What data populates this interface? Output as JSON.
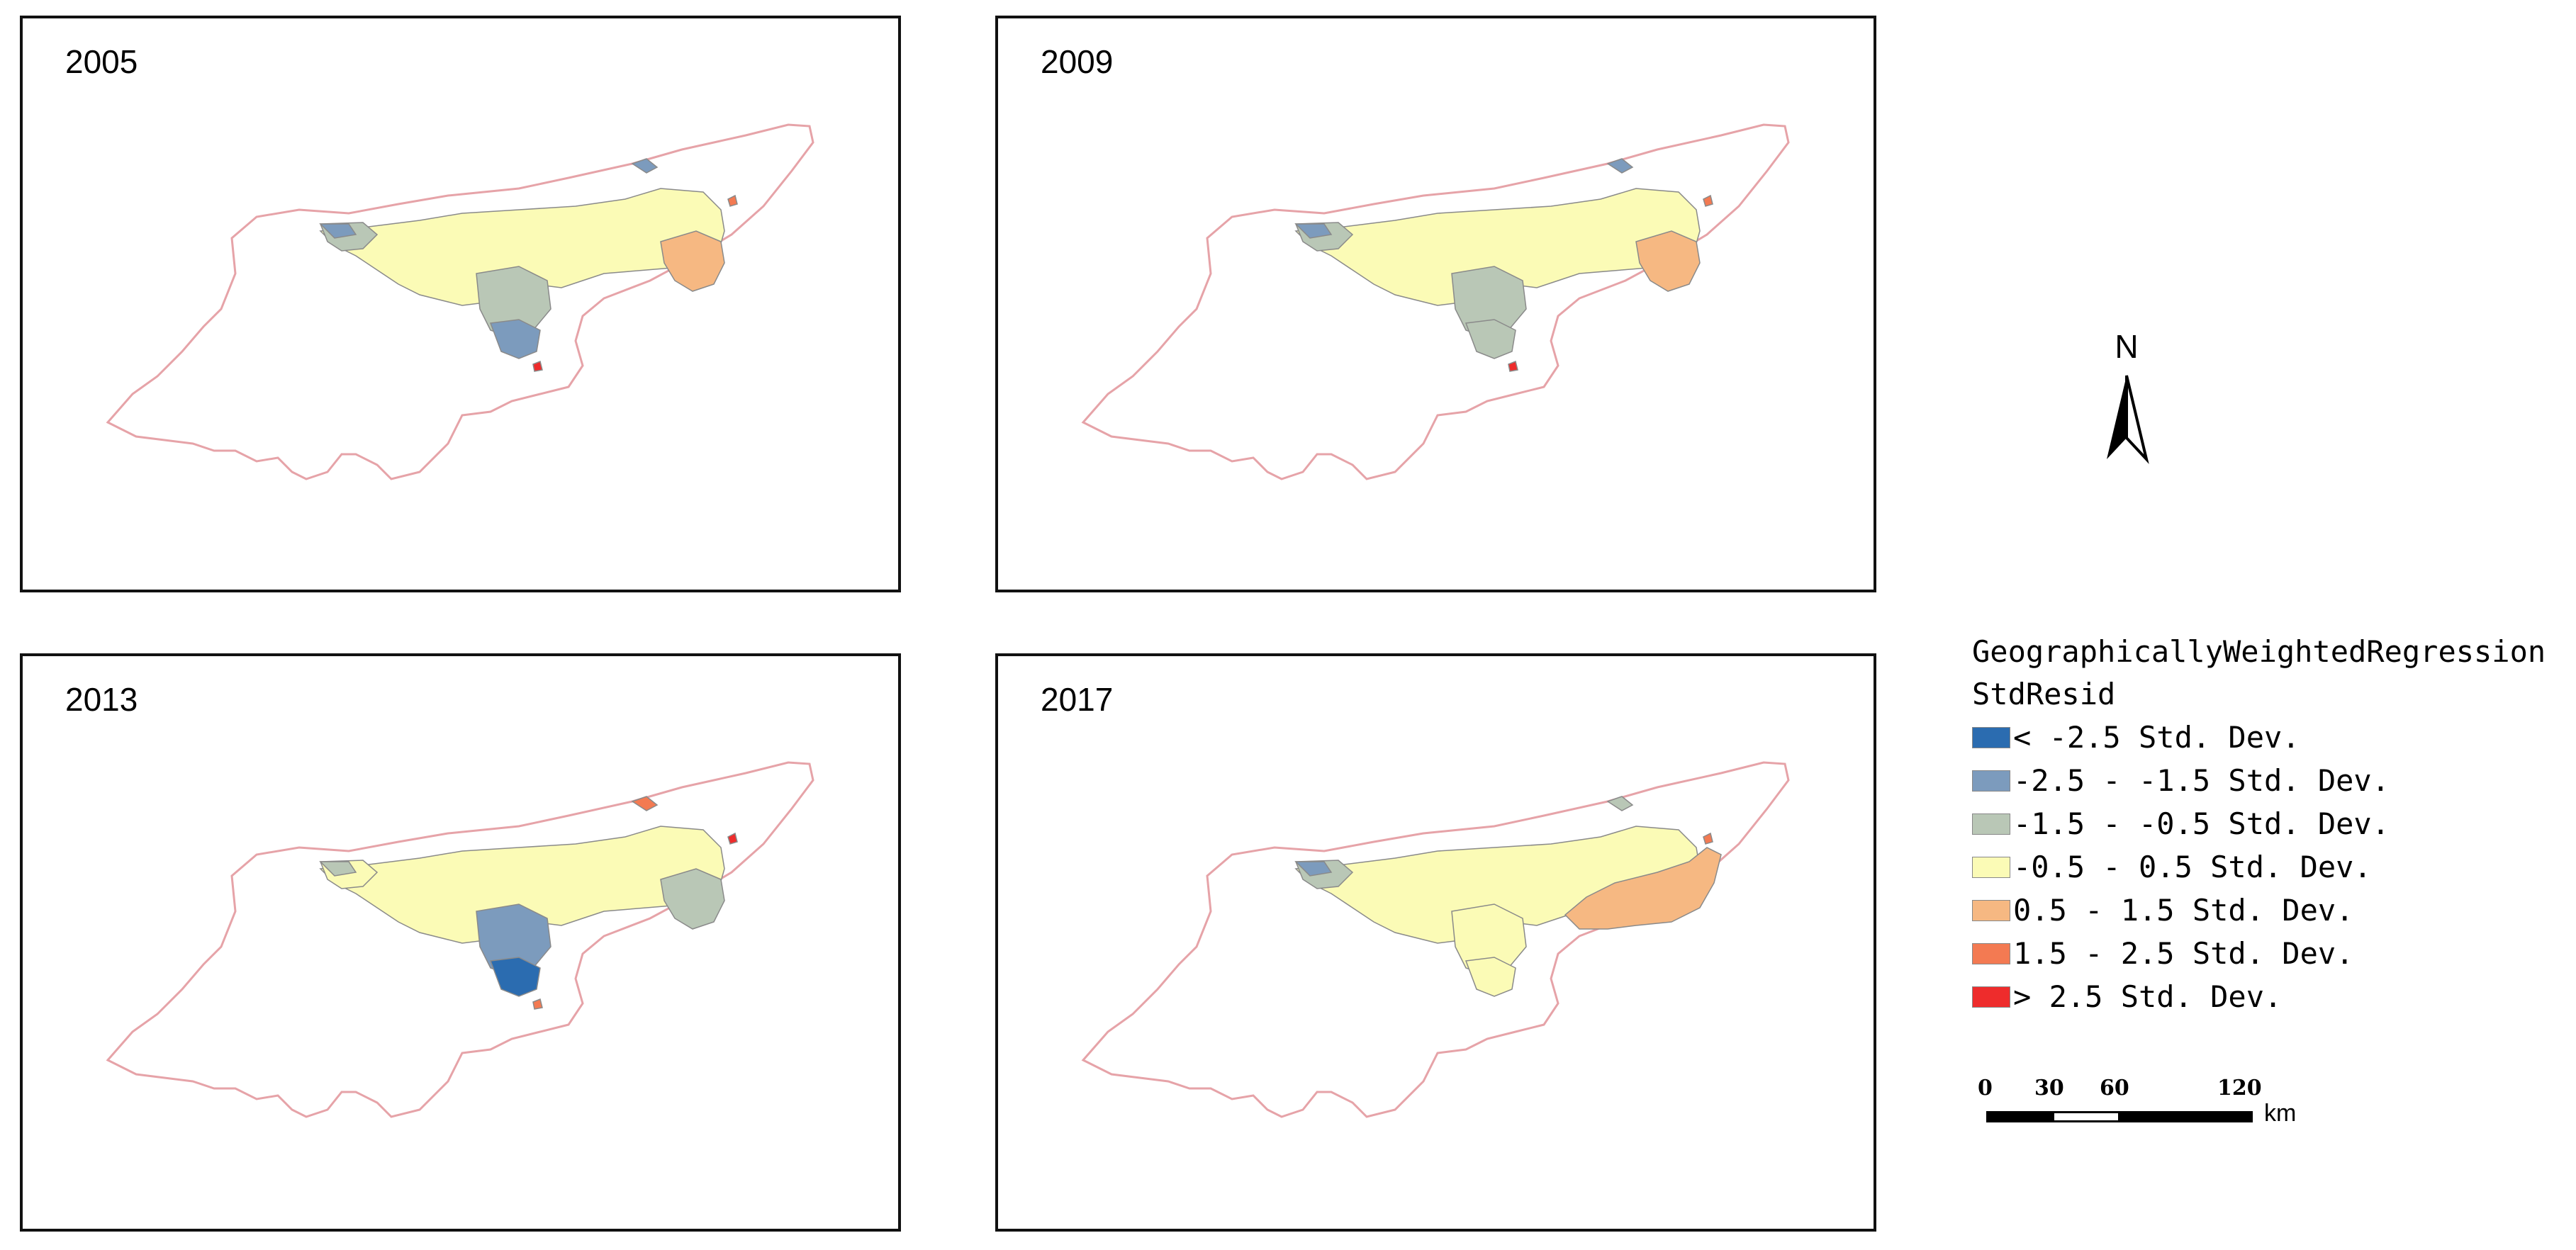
{
  "maps": [
    {
      "year": "2005"
    },
    {
      "year": "2009"
    },
    {
      "year": "2013"
    },
    {
      "year": "2017"
    }
  ],
  "north_arrow": {
    "label": "N"
  },
  "legend": {
    "title_line1": "GeographicallyWeightedRegression",
    "title_line2": "StdResid",
    "items": [
      {
        "label": "< -2.5 Std. Dev.",
        "color": "#2b6cb0"
      },
      {
        "label": "-2.5 - -1.5 Std. Dev.",
        "color": "#7c9bbd"
      },
      {
        "label": "-1.5 - -0.5 Std. Dev.",
        "color": "#b9c7b6"
      },
      {
        "label": "-0.5 - 0.5 Std. Dev.",
        "color": "#fbfbb6"
      },
      {
        "label": "0.5 - 1.5 Std. Dev.",
        "color": "#f6b882"
      },
      {
        "label": "1.5 - 2.5 Std. Dev.",
        "color": "#f37a52"
      },
      {
        "label": "> 2.5 Std. Dev.",
        "color": "#ee2c2c"
      }
    ]
  },
  "scale_bar": {
    "ticks": [
      "0",
      "30",
      "60",
      "120"
    ],
    "unit": "km"
  },
  "colors": {
    "boundary": "#e6a3a8",
    "frame": "#111111"
  }
}
